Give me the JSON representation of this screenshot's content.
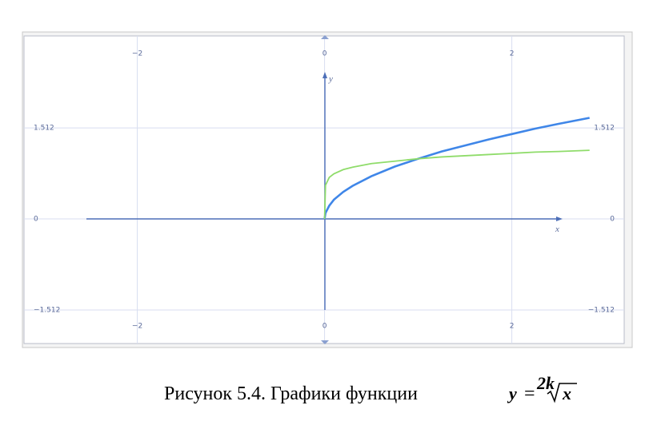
{
  "chart_data": {
    "type": "line",
    "title": "Рисунок 5.4. Графики функции",
    "formula": {
      "lhs": "y",
      "eq": "=",
      "index": "2k",
      "radicand": "x"
    },
    "x_label": "x",
    "y_label": "y",
    "x": [
      0,
      0.01,
      0.05,
      0.1,
      0.2,
      0.3,
      0.5,
      0.75,
      1,
      1.25,
      1.5,
      1.75,
      2,
      2.25,
      2.5,
      2.83
    ],
    "series": [
      {
        "color": "#3f86e8",
        "values": [
          0,
          0.1,
          0.22,
          0.32,
          0.45,
          0.55,
          0.71,
          0.87,
          1,
          1.12,
          1.22,
          1.32,
          1.41,
          1.5,
          1.58,
          1.68
        ]
      },
      {
        "color": "#8fdc6a",
        "values": [
          0,
          0.56,
          0.69,
          0.75,
          0.82,
          0.86,
          0.92,
          0.96,
          1,
          1.03,
          1.05,
          1.07,
          1.09,
          1.11,
          1.12,
          1.14
        ]
      }
    ],
    "xlim": [
      -3.21,
      3.2
    ],
    "ylim": [
      -2.07,
      3.04
    ],
    "xticks": [
      {
        "value": -2,
        "label": "−2"
      },
      0,
      2
    ],
    "yticks": [
      {
        "value": -1.512,
        "label": "−1.512"
      },
      0,
      1.512
    ],
    "grid": true
  }
}
